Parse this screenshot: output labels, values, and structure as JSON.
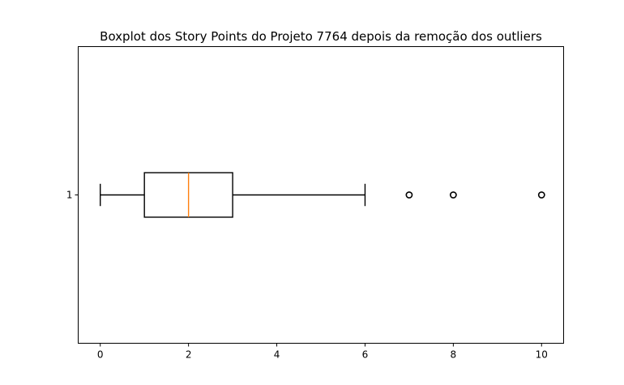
{
  "chart_data": {
    "type": "boxplot",
    "orientation": "horizontal",
    "title": "Boxplot dos Story Points do Projeto 7764 depois da remoção dos outliers",
    "xlabel": "",
    "ylabel": "",
    "xlim": [
      -0.5,
      10.5
    ],
    "x_ticks": [
      0,
      2,
      4,
      6,
      8,
      10
    ],
    "x_tick_labels": [
      "0",
      "2",
      "4",
      "6",
      "8",
      "10"
    ],
    "y_ticks": [
      1
    ],
    "y_tick_labels": [
      "1"
    ],
    "grid": false,
    "boxes": [
      {
        "position": 1,
        "whisker_low": 0,
        "q1": 1,
        "median": 2,
        "q3": 3,
        "whisker_high": 6,
        "outliers": [
          7,
          8,
          10
        ]
      }
    ],
    "colors": {
      "box": "#000000",
      "median": "#ff7f0e",
      "outlier_edge": "#000000"
    }
  }
}
